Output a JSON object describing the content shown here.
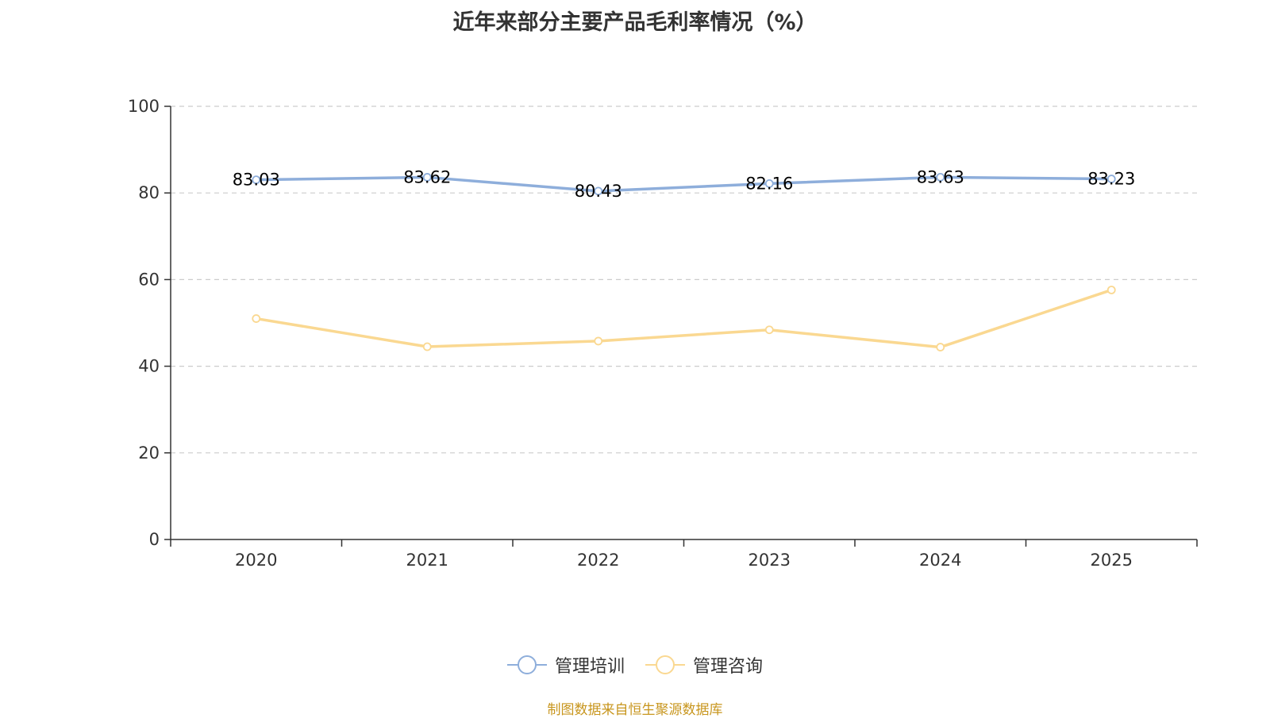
{
  "chart_data": {
    "type": "line",
    "title": "近年来部分主要产品毛利率情况（%）",
    "categories": [
      "2020",
      "2021",
      "2022",
      "2023",
      "2024",
      "2025"
    ],
    "ylim": [
      0,
      100
    ],
    "yticks": [
      0,
      20,
      40,
      60,
      80,
      100
    ],
    "grid": true,
    "legend_position": "bottom-center",
    "series": [
      {
        "name": "管理培训",
        "color": "#8eaedb",
        "values": [
          83.03,
          83.62,
          80.43,
          82.16,
          83.63,
          83.23
        ],
        "labels": [
          "83.03",
          "83.62",
          "80.43",
          "82.16",
          "83.63",
          "83.23"
        ],
        "show_labels": true
      },
      {
        "name": "管理咨询",
        "color": "#fad891",
        "values": [
          51.0,
          44.5,
          45.8,
          48.4,
          44.4,
          57.6
        ],
        "show_labels": false
      }
    ]
  },
  "source_note": "制图数据来自恒生聚源数据库"
}
